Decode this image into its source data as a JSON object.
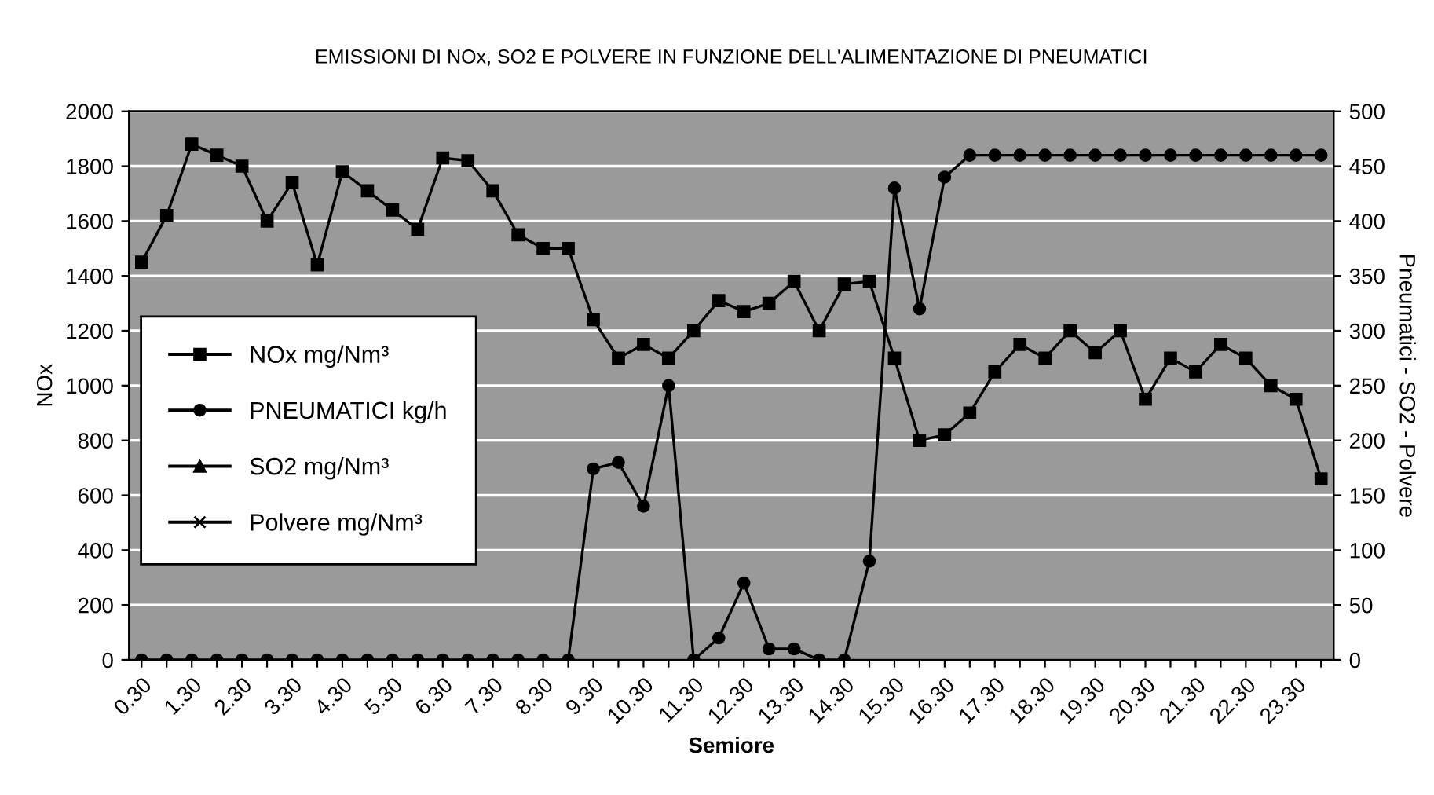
{
  "chart_data": {
    "type": "line",
    "title": "EMISSIONI DI NOx, SO2 E POLVERE IN FUNZIONE DELL'ALIMENTAZIONE DI PNEUMATICI",
    "xlabel": "Semiore",
    "ylabel": "NOx",
    "y2label": "Pneumatici - SO2 - Polvere",
    "categories": [
      "0.30",
      null,
      "1.30",
      null,
      "2.30",
      null,
      "3.30",
      null,
      "4.30",
      null,
      "5.30",
      null,
      "6.30",
      null,
      "7.30",
      null,
      "8.30",
      null,
      "9.30",
      null,
      "10.30",
      null,
      "11.30",
      null,
      "12.30",
      null,
      "13.30",
      null,
      "14.30",
      null,
      "15.30",
      null,
      "16.30",
      null,
      "17.30",
      null,
      "18.30",
      null,
      "19.30",
      null,
      "20.30",
      null,
      "21.30",
      null,
      "22.30",
      null,
      "23.30",
      null
    ],
    "series": [
      {
        "name": "NOx mg/Nm³",
        "color": "#000000",
        "marker": "square",
        "values": [
          1450,
          1620,
          1880,
          1840,
          1800,
          1600,
          1740,
          1440,
          1780,
          1710,
          1640,
          1570,
          1830,
          1820,
          1710,
          1550,
          1500,
          1500,
          1240,
          1100,
          1150,
          1100,
          1200,
          1310,
          1270,
          1300,
          1380,
          1200,
          1370,
          1380,
          1100,
          800,
          820,
          900,
          1050,
          1150,
          1100,
          1200,
          1120,
          1200,
          950,
          1100,
          1050,
          1150,
          1100,
          1000,
          950,
          660
        ]
      },
      {
        "name": "PNEUMATICI kg/h",
        "color": "#000000",
        "marker": "circle",
        "axis": "y2",
        "values": [
          0,
          0,
          0,
          0,
          0,
          0,
          0,
          0,
          0,
          0,
          0,
          0,
          0,
          0,
          0,
          0,
          0,
          0,
          174,
          180,
          140,
          250,
          0,
          20,
          70,
          10,
          10,
          0,
          0,
          90,
          430,
          320,
          440,
          460,
          460,
          460,
          460,
          460,
          460,
          460,
          460,
          460,
          460,
          460,
          460,
          460,
          460,
          460
        ]
      },
      {
        "name": "SO2 mg/Nm³",
        "color": "#000000",
        "marker": "triangle",
        "axis": "y2",
        "values": [
          null,
          null,
          null,
          null,
          null,
          null,
          null,
          null,
          null,
          null,
          null,
          null,
          null,
          null,
          null,
          null,
          null,
          null,
          null,
          null,
          null,
          null,
          null,
          null,
          null,
          null,
          null,
          null,
          null,
          null,
          null,
          null,
          null,
          null,
          null,
          null,
          null,
          null,
          null,
          null,
          null,
          null,
          null,
          null,
          null,
          null,
          null,
          null
        ]
      },
      {
        "name": "Polvere mg/Nm³",
        "color": "#000000",
        "marker": "cross",
        "axis": "y2",
        "values": [
          null,
          null,
          null,
          null,
          null,
          null,
          null,
          null,
          null,
          null,
          null,
          null,
          null,
          null,
          null,
          null,
          null,
          null,
          null,
          null,
          null,
          null,
          null,
          null,
          null,
          null,
          null,
          null,
          null,
          null,
          null,
          null,
          null,
          null,
          null,
          null,
          null,
          null,
          null,
          null,
          null,
          null,
          null,
          null,
          null,
          null,
          null,
          null
        ]
      }
    ],
    "ylim": [
      0,
      2000
    ],
    "yticks": [
      0,
      200,
      400,
      600,
      800,
      1000,
      1200,
      1400,
      1600,
      1800,
      2000
    ],
    "y2lim": [
      0,
      500
    ],
    "y2ticks": [
      0,
      50,
      100,
      150,
      200,
      250,
      300,
      350,
      400,
      450,
      500
    ],
    "grid": "y",
    "legend": "left"
  }
}
